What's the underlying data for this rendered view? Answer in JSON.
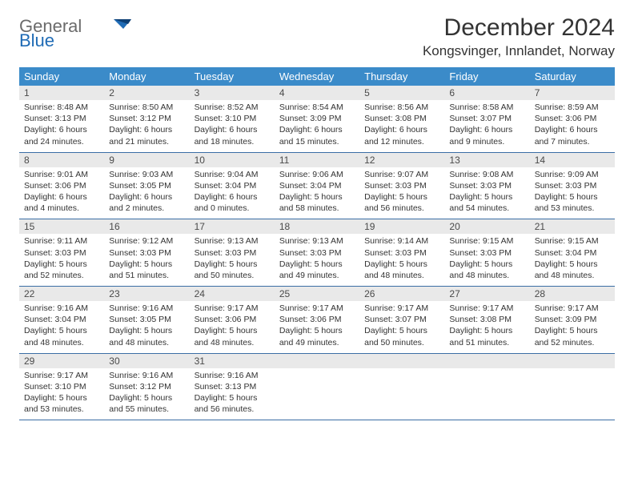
{
  "logo": {
    "line1": "General",
    "line2": "Blue"
  },
  "title": "December 2024",
  "location": "Kongsvinger, Innlandet, Norway",
  "colors": {
    "header_bg": "#3b8bc9",
    "header_text": "#ffffff",
    "daynum_bg": "#e9e9e9",
    "row_border": "#3b6ea5",
    "logo_gray": "#6b6b6b",
    "logo_blue": "#1f6bb5"
  },
  "weekdays": [
    "Sunday",
    "Monday",
    "Tuesday",
    "Wednesday",
    "Thursday",
    "Friday",
    "Saturday"
  ],
  "days": [
    {
      "n": "1",
      "sr": "Sunrise: 8:48 AM",
      "ss": "Sunset: 3:13 PM",
      "d1": "Daylight: 6 hours",
      "d2": "and 24 minutes."
    },
    {
      "n": "2",
      "sr": "Sunrise: 8:50 AM",
      "ss": "Sunset: 3:12 PM",
      "d1": "Daylight: 6 hours",
      "d2": "and 21 minutes."
    },
    {
      "n": "3",
      "sr": "Sunrise: 8:52 AM",
      "ss": "Sunset: 3:10 PM",
      "d1": "Daylight: 6 hours",
      "d2": "and 18 minutes."
    },
    {
      "n": "4",
      "sr": "Sunrise: 8:54 AM",
      "ss": "Sunset: 3:09 PM",
      "d1": "Daylight: 6 hours",
      "d2": "and 15 minutes."
    },
    {
      "n": "5",
      "sr": "Sunrise: 8:56 AM",
      "ss": "Sunset: 3:08 PM",
      "d1": "Daylight: 6 hours",
      "d2": "and 12 minutes."
    },
    {
      "n": "6",
      "sr": "Sunrise: 8:58 AM",
      "ss": "Sunset: 3:07 PM",
      "d1": "Daylight: 6 hours",
      "d2": "and 9 minutes."
    },
    {
      "n": "7",
      "sr": "Sunrise: 8:59 AM",
      "ss": "Sunset: 3:06 PM",
      "d1": "Daylight: 6 hours",
      "d2": "and 7 minutes."
    },
    {
      "n": "8",
      "sr": "Sunrise: 9:01 AM",
      "ss": "Sunset: 3:06 PM",
      "d1": "Daylight: 6 hours",
      "d2": "and 4 minutes."
    },
    {
      "n": "9",
      "sr": "Sunrise: 9:03 AM",
      "ss": "Sunset: 3:05 PM",
      "d1": "Daylight: 6 hours",
      "d2": "and 2 minutes."
    },
    {
      "n": "10",
      "sr": "Sunrise: 9:04 AM",
      "ss": "Sunset: 3:04 PM",
      "d1": "Daylight: 6 hours",
      "d2": "and 0 minutes."
    },
    {
      "n": "11",
      "sr": "Sunrise: 9:06 AM",
      "ss": "Sunset: 3:04 PM",
      "d1": "Daylight: 5 hours",
      "d2": "and 58 minutes."
    },
    {
      "n": "12",
      "sr": "Sunrise: 9:07 AM",
      "ss": "Sunset: 3:03 PM",
      "d1": "Daylight: 5 hours",
      "d2": "and 56 minutes."
    },
    {
      "n": "13",
      "sr": "Sunrise: 9:08 AM",
      "ss": "Sunset: 3:03 PM",
      "d1": "Daylight: 5 hours",
      "d2": "and 54 minutes."
    },
    {
      "n": "14",
      "sr": "Sunrise: 9:09 AM",
      "ss": "Sunset: 3:03 PM",
      "d1": "Daylight: 5 hours",
      "d2": "and 53 minutes."
    },
    {
      "n": "15",
      "sr": "Sunrise: 9:11 AM",
      "ss": "Sunset: 3:03 PM",
      "d1": "Daylight: 5 hours",
      "d2": "and 52 minutes."
    },
    {
      "n": "16",
      "sr": "Sunrise: 9:12 AM",
      "ss": "Sunset: 3:03 PM",
      "d1": "Daylight: 5 hours",
      "d2": "and 51 minutes."
    },
    {
      "n": "17",
      "sr": "Sunrise: 9:13 AM",
      "ss": "Sunset: 3:03 PM",
      "d1": "Daylight: 5 hours",
      "d2": "and 50 minutes."
    },
    {
      "n": "18",
      "sr": "Sunrise: 9:13 AM",
      "ss": "Sunset: 3:03 PM",
      "d1": "Daylight: 5 hours",
      "d2": "and 49 minutes."
    },
    {
      "n": "19",
      "sr": "Sunrise: 9:14 AM",
      "ss": "Sunset: 3:03 PM",
      "d1": "Daylight: 5 hours",
      "d2": "and 48 minutes."
    },
    {
      "n": "20",
      "sr": "Sunrise: 9:15 AM",
      "ss": "Sunset: 3:03 PM",
      "d1": "Daylight: 5 hours",
      "d2": "and 48 minutes."
    },
    {
      "n": "21",
      "sr": "Sunrise: 9:15 AM",
      "ss": "Sunset: 3:04 PM",
      "d1": "Daylight: 5 hours",
      "d2": "and 48 minutes."
    },
    {
      "n": "22",
      "sr": "Sunrise: 9:16 AM",
      "ss": "Sunset: 3:04 PM",
      "d1": "Daylight: 5 hours",
      "d2": "and 48 minutes."
    },
    {
      "n": "23",
      "sr": "Sunrise: 9:16 AM",
      "ss": "Sunset: 3:05 PM",
      "d1": "Daylight: 5 hours",
      "d2": "and 48 minutes."
    },
    {
      "n": "24",
      "sr": "Sunrise: 9:17 AM",
      "ss": "Sunset: 3:06 PM",
      "d1": "Daylight: 5 hours",
      "d2": "and 48 minutes."
    },
    {
      "n": "25",
      "sr": "Sunrise: 9:17 AM",
      "ss": "Sunset: 3:06 PM",
      "d1": "Daylight: 5 hours",
      "d2": "and 49 minutes."
    },
    {
      "n": "26",
      "sr": "Sunrise: 9:17 AM",
      "ss": "Sunset: 3:07 PM",
      "d1": "Daylight: 5 hours",
      "d2": "and 50 minutes."
    },
    {
      "n": "27",
      "sr": "Sunrise: 9:17 AM",
      "ss": "Sunset: 3:08 PM",
      "d1": "Daylight: 5 hours",
      "d2": "and 51 minutes."
    },
    {
      "n": "28",
      "sr": "Sunrise: 9:17 AM",
      "ss": "Sunset: 3:09 PM",
      "d1": "Daylight: 5 hours",
      "d2": "and 52 minutes."
    },
    {
      "n": "29",
      "sr": "Sunrise: 9:17 AM",
      "ss": "Sunset: 3:10 PM",
      "d1": "Daylight: 5 hours",
      "d2": "and 53 minutes."
    },
    {
      "n": "30",
      "sr": "Sunrise: 9:16 AM",
      "ss": "Sunset: 3:12 PM",
      "d1": "Daylight: 5 hours",
      "d2": "and 55 minutes."
    },
    {
      "n": "31",
      "sr": "Sunrise: 9:16 AM",
      "ss": "Sunset: 3:13 PM",
      "d1": "Daylight: 5 hours",
      "d2": "and 56 minutes."
    }
  ]
}
